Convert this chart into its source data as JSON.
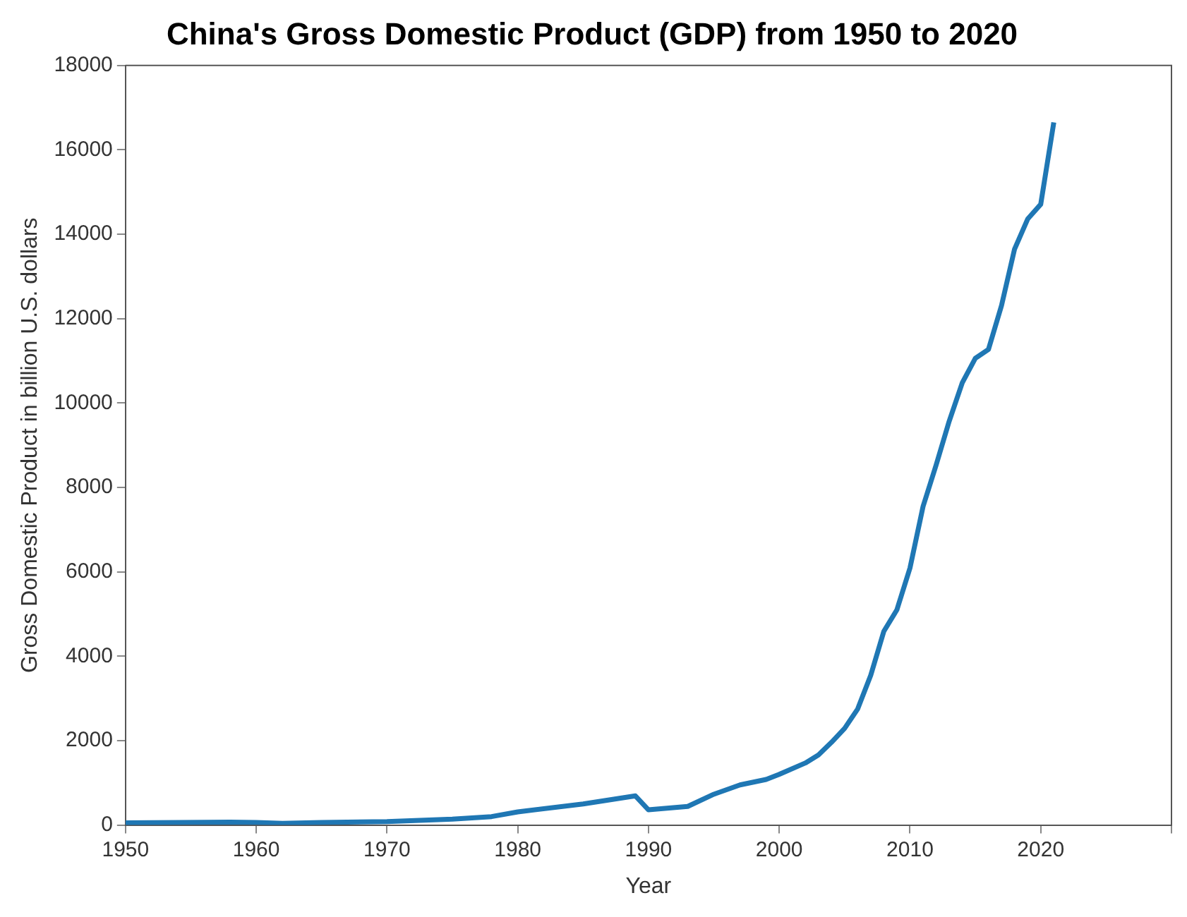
{
  "chart_data": {
    "type": "line",
    "title": "China's Gross Domestic Product (GDP) from 1950 to 2020",
    "xlabel": "Year",
    "ylabel": "Gross Domestic Product in billion U.S. dollars",
    "x": [
      1950,
      1958,
      1960,
      1962,
      1965,
      1970,
      1975,
      1978,
      1980,
      1985,
      1989,
      1990,
      1993,
      1995,
      1997,
      1999,
      2000,
      2002,
      2003,
      2004,
      2005,
      2006,
      2007,
      2008,
      2009,
      2010,
      2011,
      2012,
      2013,
      2014,
      2015,
      2016,
      2017,
      2018,
      2019,
      2020,
      2021
    ],
    "series": [
      {
        "color": "#1f77b4",
        "values": [
          50,
          70,
          60,
          40,
          60,
          80,
          140,
          200,
          310,
          500,
          690,
          360,
          440,
          730,
          950,
          1080,
          1200,
          1470,
          1660,
          1960,
          2290,
          2750,
          3550,
          4590,
          5100,
          6090,
          7550,
          8530,
          9570,
          10480,
          11060,
          11270,
          12310,
          13650,
          14360,
          14710,
          16650
        ]
      }
    ],
    "xlim": [
      1950,
      2030
    ],
    "xticks": [
      1950,
      1960,
      1970,
      1980,
      1990,
      2000,
      2010,
      2020,
      {
        "value": 2030,
        "label": null
      }
    ],
    "ylim": [
      0,
      18000
    ],
    "yticks": [
      0,
      2000,
      4000,
      6000,
      8000,
      10000,
      12000,
      14000,
      16000,
      18000
    ],
    "grid": false,
    "legend": false,
    "marker": "none",
    "line_style": "solid"
  }
}
